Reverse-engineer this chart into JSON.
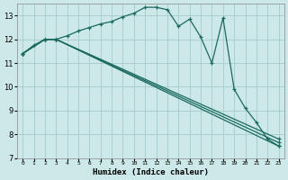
{
  "xlabel": "Humidex (Indice chaleur)",
  "background_color": "#cce8e8",
  "grid_color": "#aacece",
  "line_color": "#1a6a60",
  "xlim": [
    -0.5,
    23.5
  ],
  "ylim": [
    7,
    13.5
  ],
  "yticks": [
    7,
    8,
    9,
    10,
    11,
    12,
    13
  ],
  "xticks": [
    0,
    1,
    2,
    3,
    4,
    5,
    6,
    7,
    8,
    9,
    10,
    11,
    12,
    13,
    14,
    15,
    16,
    17,
    18,
    19,
    20,
    21,
    22,
    23
  ],
  "xticklabels": [
    "0",
    "1",
    "2",
    "3",
    "4",
    "5",
    "6",
    "7",
    "8",
    "9",
    "10",
    "11",
    "12",
    "13",
    "14",
    "15",
    "16",
    "17",
    "18",
    "19",
    "20",
    "21",
    "22",
    "23"
  ],
  "series": [
    {
      "x": [
        0,
        1,
        2,
        3,
        4,
        5,
        6,
        7,
        8,
        9,
        10,
        11,
        12,
        13,
        14,
        15,
        16,
        17,
        18,
        19,
        20,
        21,
        22,
        23
      ],
      "y": [
        11.4,
        11.75,
        12.0,
        12.0,
        12.15,
        12.35,
        12.5,
        12.65,
        12.75,
        12.95,
        13.1,
        13.35,
        13.35,
        13.25,
        12.55,
        12.85,
        12.1,
        11.0,
        12.9,
        9.9,
        9.1,
        8.5,
        7.8,
        7.5
      ]
    },
    {
      "x": [
        0,
        2,
        3,
        23
      ],
      "y": [
        11.4,
        12.0,
        12.0,
        7.5
      ]
    },
    {
      "x": [
        0,
        2,
        3,
        23
      ],
      "y": [
        11.4,
        12.0,
        12.0,
        7.65
      ]
    },
    {
      "x": [
        0,
        2,
        3,
        23
      ],
      "y": [
        11.4,
        12.0,
        12.0,
        7.8
      ]
    }
  ]
}
